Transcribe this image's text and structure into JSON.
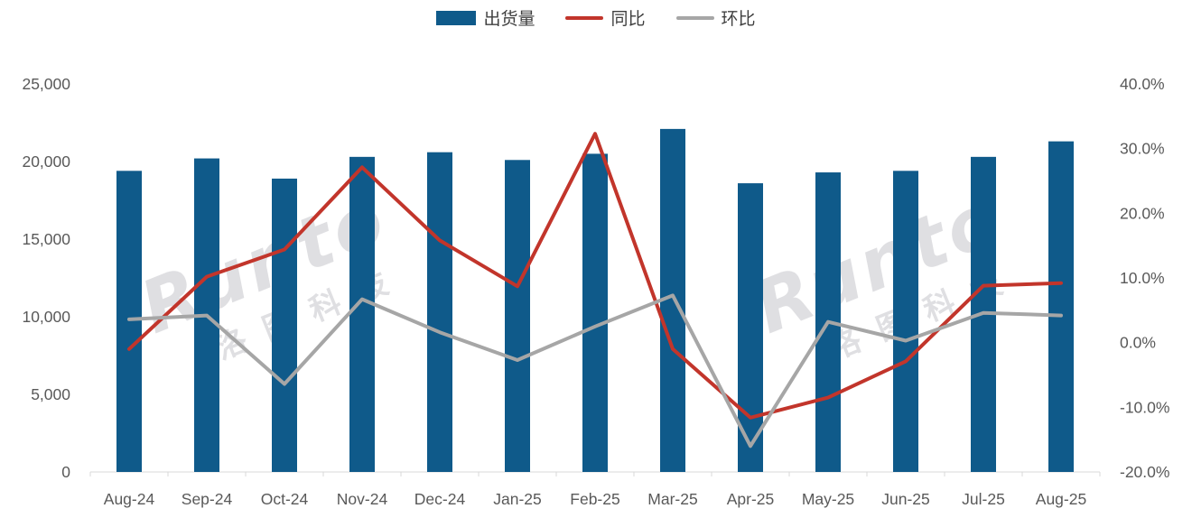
{
  "chart_data": {
    "type": "bar",
    "subtype": "bar-line-combo-dual-axis",
    "title": "",
    "categories": [
      "Aug-24",
      "Sep-24",
      "Oct-24",
      "Nov-24",
      "Dec-24",
      "Jan-25",
      "Feb-25",
      "Mar-25",
      "Apr-25",
      "May-25",
      "Jun-25",
      "Jul-25",
      "Aug-25"
    ],
    "series": [
      {
        "name": "出货量",
        "type": "bar",
        "axis": "left",
        "color": "#0f5a8a",
        "values": [
          19400,
          20200,
          18900,
          20300,
          20600,
          20100,
          20500,
          22100,
          18600,
          19300,
          19400,
          20300,
          21300
        ]
      },
      {
        "name": "同比",
        "type": "line",
        "axis": "right",
        "color": "#c2352b",
        "values": [
          -1.0,
          10.2,
          14.4,
          27.1,
          15.8,
          8.7,
          32.3,
          -1.0,
          -11.6,
          -8.5,
          -2.9,
          8.8,
          9.2
        ]
      },
      {
        "name": "环比",
        "type": "line",
        "axis": "right",
        "color": "#a6a6a6",
        "values": [
          3.6,
          4.2,
          -6.4,
          6.7,
          1.6,
          -2.7,
          2.5,
          7.3,
          -16.0,
          3.2,
          0.3,
          4.6,
          4.2
        ]
      }
    ],
    "left_axis": {
      "min": 0,
      "max": 25000,
      "tick_labels": [
        "0",
        "5,000",
        "10,000",
        "15,000",
        "20,000",
        "25,000"
      ]
    },
    "right_axis": {
      "min": -20,
      "max": 40,
      "tick_labels": [
        "-20.0%",
        "-10.0%",
        "0.0%",
        "10.0%",
        "20.0%",
        "30.0%",
        "40.0%"
      ]
    },
    "grid": false,
    "legend_position": "top-center",
    "axis_line_color": "#d9d9d9",
    "axis_text_color": "#595959"
  },
  "legend": {
    "items": [
      {
        "label": "出货量",
        "marker": "bar-swatch"
      },
      {
        "label": "同比",
        "marker": "line-swatch"
      },
      {
        "label": "环比",
        "marker": "line-swatch"
      }
    ]
  },
  "watermark": {
    "brand": "Runto",
    "cjk": "洛图科技"
  }
}
